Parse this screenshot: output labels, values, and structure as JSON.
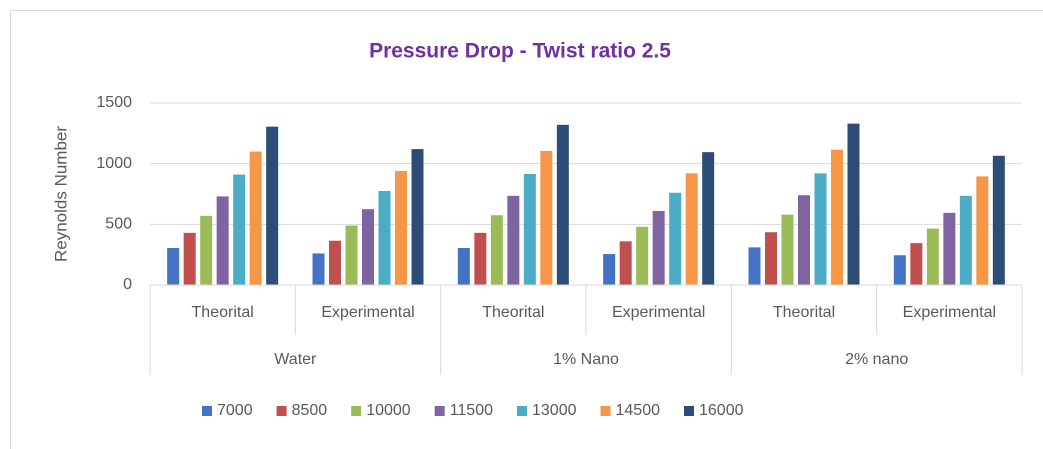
{
  "chart_data": {
    "type": "bar",
    "title": "Pressure Drop - Twist ratio 2.5",
    "y_label": "Reynolds Number",
    "categories": [
      "Theorital",
      "Experimental",
      "Theorital",
      "Experimental",
      "Theorital",
      "Experimental"
    ],
    "groups": [
      "Water",
      "1% Nano",
      "2% nano"
    ],
    "series": [
      {
        "name": "7000",
        "color": "#4472c4",
        "values": [
          305,
          260,
          305,
          255,
          310,
          245
        ]
      },
      {
        "name": "8500",
        "color": "#c0504d",
        "values": [
          430,
          365,
          430,
          360,
          435,
          345
        ]
      },
      {
        "name": "10000",
        "color": "#9bbb59",
        "values": [
          570,
          490,
          575,
          480,
          580,
          465
        ]
      },
      {
        "name": "11500",
        "color": "#8064a2",
        "values": [
          730,
          625,
          735,
          610,
          740,
          595
        ]
      },
      {
        "name": "13000",
        "color": "#4bacc6",
        "values": [
          910,
          775,
          915,
          760,
          920,
          735
        ]
      },
      {
        "name": "14500",
        "color": "#f79646",
        "values": [
          1100,
          940,
          1105,
          920,
          1115,
          895
        ]
      },
      {
        "name": "16000",
        "color": "#2c4d75",
        "values": [
          1305,
          1120,
          1320,
          1095,
          1330,
          1065
        ]
      }
    ],
    "ylim": [
      0,
      1500
    ],
    "yticks": [
      0,
      500,
      1000,
      1500
    ],
    "grid": true,
    "legend": "bottom"
  }
}
